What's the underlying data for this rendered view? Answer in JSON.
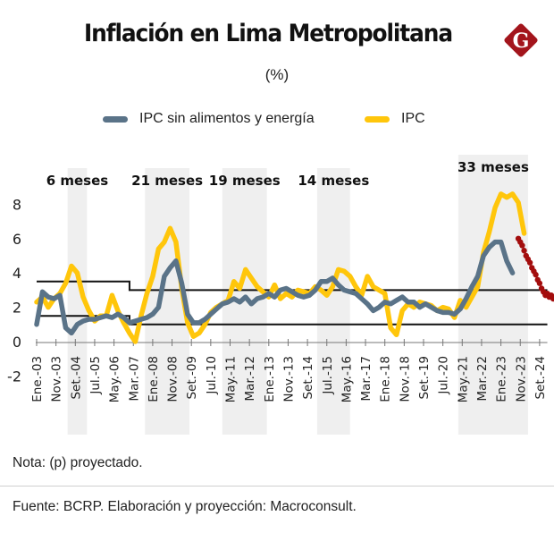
{
  "header": {
    "title": "Inflación en Lima Metropolitana",
    "subtitle": "(%)",
    "logo_letter": "G",
    "logo_color": "#a3151c"
  },
  "legend": [
    {
      "label": "IPC sin alimentos y energía",
      "color": "#5a7388"
    },
    {
      "label": "IPC",
      "color": "#ffc60b"
    }
  ],
  "footer": {
    "note": "Nota: (p) proyectado.",
    "source": "Fuente: BCRP. Elaboración y proyección: Macroconsult."
  },
  "chart_data": {
    "type": "line",
    "title": "Inflación en Lima Metropolitana",
    "subtitle": "(%)",
    "xlabel": "",
    "ylabel": "",
    "ylim": [
      -2,
      9
    ],
    "yticks": [
      "8",
      "6",
      "4",
      "2",
      "0",
      "-2"
    ],
    "ytick_values": [
      8,
      6,
      4,
      2,
      0,
      -2
    ],
    "grid": false,
    "legend_position": "top-center",
    "x_start": "2003-01",
    "x_ticks": [
      "Ene.-03",
      "Nov.-03",
      "Set.-04",
      "Jul.-05",
      "May.-06",
      "Mar.-07",
      "Ene.-08",
      "Nov.-08",
      "Set.-09",
      "Jul.-10",
      "May.-11",
      "Mar.-12",
      "Ene.-13",
      "Nov.-13",
      "Set.-14",
      "Jul.-15",
      "May.-16",
      "Mar.-17",
      "Ene.-18",
      "Nov.-18",
      "Set.-19",
      "Jul.-20",
      "May.-21",
      "Mar.-22",
      "Ene.-23",
      "Nov.-23",
      "Set.-24"
    ],
    "x_tick_months": [
      0,
      10,
      20,
      30,
      40,
      50,
      60,
      70,
      80,
      90,
      100,
      110,
      120,
      130,
      140,
      150,
      160,
      170,
      180,
      190,
      200,
      210,
      220,
      230,
      240,
      250,
      260
    ],
    "shaded_periods": [
      {
        "label": "6 meses",
        "start_month": 16,
        "end_month": 26
      },
      {
        "label": "21 meses",
        "start_month": 56,
        "end_month": 79
      },
      {
        "label": "19 meses",
        "start_month": 96,
        "end_month": 119
      },
      {
        "label": "14 meses",
        "start_month": 145,
        "end_month": 162
      },
      {
        "label": "33 meses",
        "start_month": 218,
        "end_month": 254
      }
    ],
    "target_band": {
      "upper": [
        {
          "from_month": 0,
          "to_month": 48,
          "value": 3.5
        },
        {
          "from_month": 48,
          "to_month": 264,
          "value": 3.0
        }
      ],
      "lower": [
        {
          "from_month": 0,
          "to_month": 48,
          "value": 1.5
        },
        {
          "from_month": 48,
          "to_month": 264,
          "value": 1.0
        }
      ]
    },
    "series": [
      {
        "name": "IPC",
        "color": "#ffc60b",
        "step_months": 3,
        "start_month": 0,
        "values": [
          2.3,
          2.6,
          2.0,
          2.5,
          2.8,
          3.4,
          4.4,
          4.0,
          2.6,
          1.8,
          1.2,
          1.5,
          1.5,
          2.7,
          1.8,
          1.1,
          0.5,
          0.0,
          1.5,
          2.8,
          3.8,
          5.4,
          5.8,
          6.6,
          5.8,
          3.1,
          1.1,
          0.3,
          0.5,
          1.0,
          1.7,
          2.0,
          2.2,
          2.4,
          3.5,
          3.1,
          4.2,
          3.7,
          3.2,
          2.9,
          2.6,
          3.3,
          2.5,
          2.8,
          2.6,
          3.0,
          2.9,
          2.8,
          3.2,
          3.0,
          2.7,
          3.2,
          4.2,
          4.1,
          3.8,
          3.2,
          2.7,
          3.8,
          3.2,
          3.0,
          2.8,
          0.8,
          0.4,
          1.8,
          2.2,
          2.0,
          2.3,
          2.2,
          2.1,
          1.8,
          2.0,
          1.9,
          1.4,
          2.4,
          2.0,
          2.6,
          3.2,
          5.2,
          6.4,
          7.8,
          8.6,
          8.4,
          8.6,
          8.1,
          6.3
        ]
      },
      {
        "name": "IPC sin alimentos y energía",
        "color": "#5a7388",
        "step_months": 3,
        "start_month": 0,
        "values": [
          1.0,
          2.9,
          2.6,
          2.5,
          2.7,
          0.8,
          0.5,
          1.0,
          1.2,
          1.3,
          1.3,
          1.4,
          1.5,
          1.4,
          1.6,
          1.4,
          1.1,
          1.2,
          1.3,
          1.4,
          1.6,
          2.0,
          3.8,
          4.3,
          4.7,
          3.4,
          1.6,
          1.1,
          1.1,
          1.3,
          1.6,
          1.9,
          2.2,
          2.3,
          2.5,
          2.3,
          2.6,
          2.2,
          2.5,
          2.6,
          2.8,
          2.6,
          3.0,
          3.1,
          2.9,
          2.7,
          2.6,
          2.7,
          3.0,
          3.5,
          3.5,
          3.7,
          3.3,
          3.0,
          2.9,
          2.8,
          2.5,
          2.2,
          1.8,
          2.0,
          2.3,
          2.2,
          2.4,
          2.6,
          2.3,
          2.3,
          2.0,
          2.2,
          2.0,
          1.8,
          1.7,
          1.7,
          1.6,
          1.9,
          2.5,
          3.2,
          3.8,
          5.0,
          5.5,
          5.8,
          5.8,
          4.7,
          4.0
        ]
      },
      {
        "name": "IPC (p) proyectado",
        "color": "#a30d0d",
        "style": "dotted",
        "start_month": 249,
        "step_months": 1,
        "values": [
          6.0,
          5.8,
          5.6,
          5.3,
          5.0,
          4.8,
          4.6,
          4.3,
          4.1,
          3.9,
          3.6,
          3.4,
          3.1,
          2.9,
          2.7,
          2.8,
          2.6,
          2.7,
          2.5,
          2.6,
          2.4
        ]
      }
    ]
  }
}
